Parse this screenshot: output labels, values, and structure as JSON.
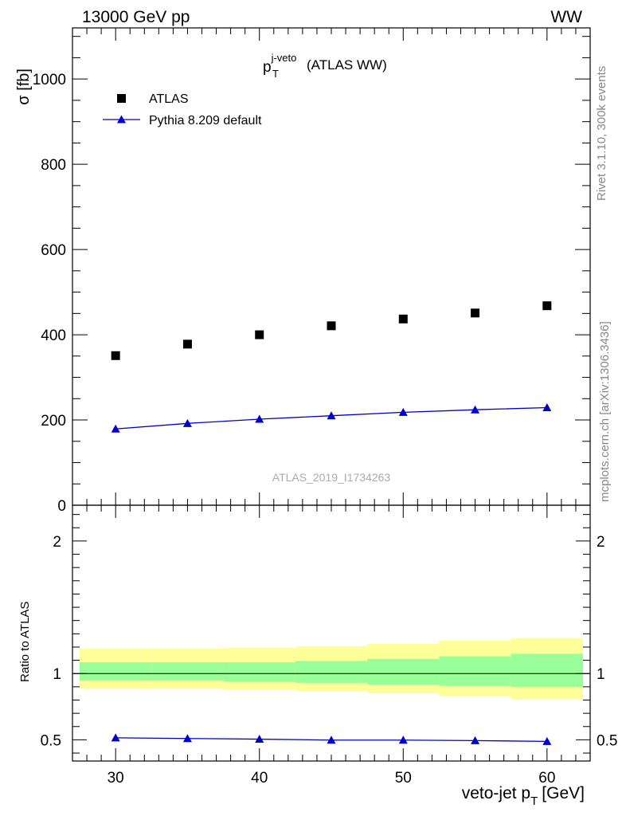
{
  "header": {
    "energy_label": "13000 GeV pp",
    "process_label": "WW",
    "side_label_upper": "Rivet 3.1.10,  300k events",
    "side_label_lower": "mcplots.cern.ch [arXiv:1306.3436]",
    "watermark": "ATLAS_2019_I1734263"
  },
  "chart_data": [
    {
      "type": "scatter",
      "panel": "main",
      "title": {
        "main": "p",
        "sup": "j-veto",
        "sub": "T",
        "suffix": "(ATLAS WW)"
      },
      "ylabel": "σ [fb]",
      "ylim": [
        0,
        1120
      ],
      "xlim": [
        27,
        63
      ],
      "yticks": [
        0,
        200,
        400,
        600,
        800,
        1000
      ],
      "legend_position": "top-left",
      "x": [
        30,
        35,
        40,
        45,
        50,
        55,
        60
      ],
      "series": [
        {
          "name": "ATLAS",
          "marker": "square",
          "color": "#000000",
          "values": [
            351,
            378,
            400,
            421,
            437,
            451,
            468
          ]
        },
        {
          "name": "Pythia 8.209 default",
          "marker": "triangle",
          "line": true,
          "color": "#0000cc",
          "values": [
            179,
            192,
            202,
            210,
            218,
            224,
            229
          ]
        }
      ]
    },
    {
      "type": "line",
      "panel": "ratio",
      "ylabel": "Ratio to ATLAS",
      "xlabel": {
        "main": "veto-jet p",
        "sub": "T",
        "suffix": "[GeV]"
      },
      "ylim": [
        0.34,
        2.27
      ],
      "xlim": [
        27,
        63
      ],
      "yticks": [
        0.5,
        1,
        2
      ],
      "ytick_labels": [
        "0.5",
        "1",
        "2"
      ],
      "xticks": [
        30,
        40,
        50,
        60
      ],
      "reference_line": 1,
      "bands": {
        "bin_edges": [
          27.5,
          32.5,
          37.5,
          42.5,
          47.5,
          52.5,
          57.5,
          62.5
        ],
        "outer": {
          "color": "#ffff99",
          "low": [
            0.885,
            0.885,
            0.877,
            0.868,
            0.851,
            0.828,
            0.807
          ],
          "high": [
            1.188,
            1.188,
            1.196,
            1.206,
            1.225,
            1.25,
            1.268
          ]
        },
        "inner": {
          "color": "#99ff99",
          "low": [
            0.946,
            0.946,
            0.938,
            0.93,
            0.917,
            0.907,
            0.898
          ],
          "high": [
            1.085,
            1.085,
            1.085,
            1.095,
            1.111,
            1.13,
            1.149
          ]
        }
      },
      "x": [
        30,
        35,
        40,
        45,
        50,
        55,
        60
      ],
      "series": [
        {
          "name": "Pythia 8.209 default",
          "marker": "triangle",
          "color": "#0000cc",
          "values": [
            0.515,
            0.51,
            0.505,
            0.498,
            0.498,
            0.494,
            0.488
          ]
        }
      ]
    }
  ]
}
